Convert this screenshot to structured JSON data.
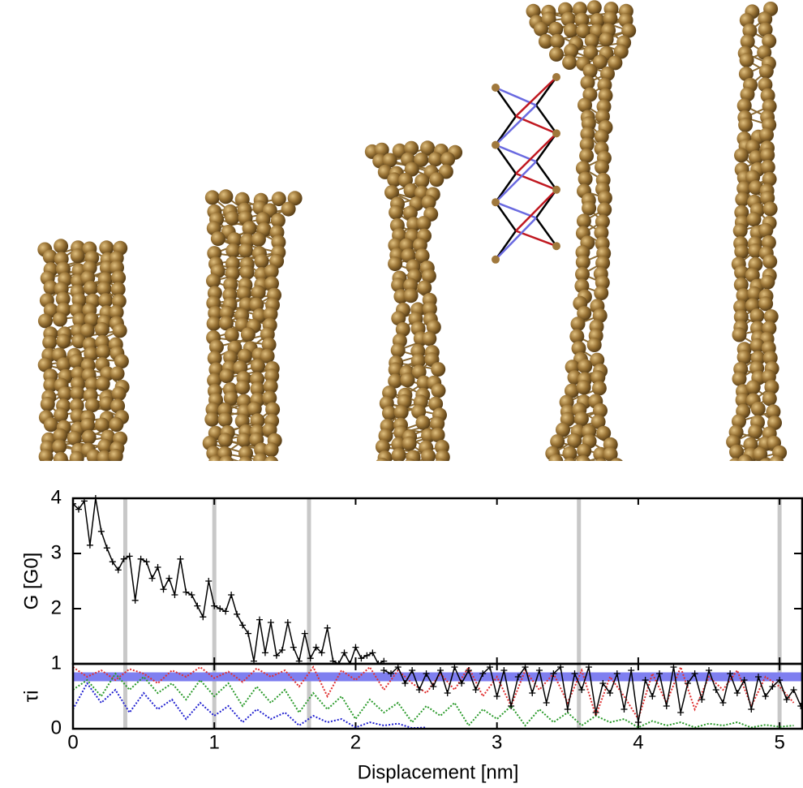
{
  "chart_data": [
    {
      "type": "line",
      "ylabel": "G [G0]",
      "color": "#000000",
      "marker": "+",
      "x": [
        0,
        0.04,
        0.08,
        0.12,
        0.16,
        0.2,
        0.24,
        0.28,
        0.32,
        0.36,
        0.4,
        0.44,
        0.48,
        0.52,
        0.56,
        0.6,
        0.64,
        0.68,
        0.72,
        0.76,
        0.8,
        0.84,
        0.88,
        0.92,
        0.96,
        1.0,
        1.04,
        1.08,
        1.12,
        1.16,
        1.2,
        1.24,
        1.28,
        1.32,
        1.36,
        1.4,
        1.44,
        1.48,
        1.52,
        1.56,
        1.6,
        1.64,
        1.68,
        1.72,
        1.76,
        1.8,
        1.84,
        1.88,
        1.92,
        1.96,
        2.0,
        2.04,
        2.08,
        2.12,
        2.16,
        2.2
      ],
      "values": [
        3.9,
        3.8,
        3.95,
        3.15,
        4.0,
        3.4,
        3.1,
        2.85,
        2.7,
        2.9,
        2.95,
        2.15,
        2.9,
        2.85,
        2.55,
        2.75,
        2.35,
        2.55,
        2.25,
        2.9,
        2.3,
        2.25,
        2.05,
        1.85,
        2.5,
        2.05,
        2.0,
        1.95,
        2.25,
        1.9,
        1.7,
        1.55,
        1.05,
        1.8,
        1.2,
        1.75,
        1.15,
        1.25,
        1.75,
        1.3,
        1.05,
        1.55,
        1.1,
        1.3,
        1.2,
        1.65,
        1.05,
        1.0,
        1.2,
        1.0,
        1.3,
        1.1,
        1.15,
        1.2,
        1.0,
        1.05
      ],
      "xlim": [
        0,
        5.16
      ],
      "ylim": [
        1,
        4
      ],
      "yticks": [
        2,
        3,
        4
      ],
      "vlines": [
        0.37,
        1.0,
        1.67,
        3.58,
        5.0
      ]
    },
    {
      "type": "line",
      "ylabel": "τi",
      "xlabel": "Displacement [nm]",
      "xlim": [
        0,
        5.16
      ],
      "xticks": [
        0,
        1,
        2,
        3,
        4,
        5
      ],
      "ylim": [
        0,
        1
      ],
      "yticks": [
        0,
        1
      ],
      "hline": 0.8,
      "series": [
        {
          "color": "#e03030",
          "dash": true,
          "x": [
            0,
            0.1,
            0.2,
            0.3,
            0.4,
            0.5,
            0.6,
            0.7,
            0.8,
            0.9,
            1.0,
            1.1,
            1.2,
            1.3,
            1.4,
            1.5,
            1.6,
            1.7,
            1.8,
            1.9,
            2.0,
            2.1,
            2.2,
            2.3,
            2.4,
            2.5,
            2.6,
            2.7,
            2.8,
            2.9,
            3.0,
            3.1,
            3.2,
            3.3,
            3.4,
            3.5,
            3.6,
            3.7,
            3.8,
            3.9,
            4.0,
            4.1,
            4.2,
            4.3,
            4.4,
            4.5,
            4.6,
            4.7,
            4.8,
            4.9,
            5.0,
            5.1
          ],
          "values": [
            0.95,
            0.8,
            0.9,
            0.75,
            0.92,
            0.85,
            0.7,
            0.9,
            0.8,
            0.95,
            0.78,
            0.88,
            0.72,
            0.93,
            0.8,
            0.9,
            0.65,
            0.95,
            0.5,
            0.9,
            0.75,
            0.95,
            0.6,
            0.9,
            0.7,
            0.55,
            0.85,
            0.6,
            0.95,
            0.5,
            0.8,
            0.35,
            0.9,
            0.6,
            0.85,
            0.4,
            0.9,
            0.2,
            0.8,
            0.5,
            0.15,
            0.85,
            0.4,
            0.95,
            0.3,
            0.8,
            0.6,
            0.9,
            0.35,
            0.8,
            0.65,
            0.4
          ]
        },
        {
          "color": "#2a9a2a",
          "dash": true,
          "x": [
            0,
            0.1,
            0.2,
            0.3,
            0.4,
            0.5,
            0.6,
            0.7,
            0.8,
            0.9,
            1.0,
            1.1,
            1.2,
            1.3,
            1.4,
            1.5,
            1.6,
            1.7,
            1.8,
            1.9,
            2.0,
            2.1,
            2.2,
            2.3,
            2.4,
            2.5,
            2.6,
            2.7,
            2.8,
            2.9,
            3.0,
            3.1,
            3.2,
            3.3,
            3.4,
            3.5,
            3.6,
            3.7,
            3.8,
            3.9,
            4.0,
            4.1,
            4.2,
            4.3,
            4.4,
            4.5,
            4.6,
            4.7,
            4.8,
            4.9,
            5.0,
            5.1
          ],
          "values": [
            0.6,
            0.75,
            0.5,
            0.85,
            0.6,
            0.8,
            0.55,
            0.7,
            0.45,
            0.75,
            0.5,
            0.7,
            0.35,
            0.65,
            0.4,
            0.6,
            0.25,
            0.55,
            0.3,
            0.5,
            0.15,
            0.45,
            0.25,
            0.4,
            0.1,
            0.35,
            0.2,
            0.4,
            0.05,
            0.3,
            0.15,
            0.35,
            0.05,
            0.3,
            0.1,
            0.25,
            0.05,
            0.2,
            0.1,
            0.15,
            0.02,
            0.12,
            0.05,
            0.1,
            0.02,
            0.08,
            0.05,
            0.1,
            0.02,
            0.06,
            0.03,
            0.05
          ]
        },
        {
          "color": "#2020d0",
          "dash": true,
          "x": [
            0,
            0.1,
            0.2,
            0.3,
            0.4,
            0.5,
            0.6,
            0.7,
            0.8,
            0.9,
            1.0,
            1.1,
            1.2,
            1.3,
            1.4,
            1.5,
            1.6,
            1.7,
            1.8,
            1.9,
            2.0,
            2.1,
            2.2,
            2.3,
            2.4,
            2.5
          ],
          "values": [
            0.3,
            0.7,
            0.4,
            0.6,
            0.25,
            0.55,
            0.3,
            0.45,
            0.15,
            0.4,
            0.2,
            0.35,
            0.1,
            0.3,
            0.15,
            0.25,
            0.05,
            0.2,
            0.1,
            0.15,
            0.02,
            0.1,
            0.05,
            0.08,
            0.01,
            0.02
          ]
        },
        {
          "color": "#000000",
          "marker": "+",
          "x": [
            2.2,
            2.25,
            2.3,
            2.35,
            2.4,
            2.45,
            2.5,
            2.55,
            2.6,
            2.65,
            2.7,
            2.75,
            2.8,
            2.85,
            2.9,
            2.95,
            3.0,
            3.05,
            3.1,
            3.15,
            3.2,
            3.25,
            3.3,
            3.35,
            3.4,
            3.45,
            3.5,
            3.55,
            3.6,
            3.65,
            3.7,
            3.75,
            3.8,
            3.85,
            3.9,
            3.95,
            4.0,
            4.05,
            4.1,
            4.15,
            4.2,
            4.25,
            4.3,
            4.35,
            4.4,
            4.45,
            4.5,
            4.55,
            4.6,
            4.65,
            4.7,
            4.75,
            4.8,
            4.85,
            4.9,
            4.95,
            5.0,
            5.05,
            5.1,
            5.15
          ],
          "values": [
            0.9,
            0.85,
            0.95,
            0.7,
            0.9,
            0.6,
            0.85,
            0.65,
            0.9,
            0.55,
            0.95,
            0.7,
            0.9,
            0.6,
            0.85,
            0.95,
            0.5,
            0.9,
            0.35,
            0.8,
            0.95,
            0.55,
            0.9,
            0.4,
            0.85,
            0.95,
            0.3,
            0.85,
            0.6,
            0.95,
            0.25,
            0.7,
            0.55,
            0.85,
            0.3,
            0.9,
            0.1,
            0.75,
            0.5,
            0.85,
            0.35,
            0.95,
            0.25,
            0.7,
            0.85,
            0.45,
            0.9,
            0.6,
            0.4,
            0.85,
            0.55,
            0.75,
            0.3,
            0.8,
            0.5,
            0.65,
            0.75,
            0.45,
            0.6,
            0.35
          ]
        }
      ]
    }
  ]
}
